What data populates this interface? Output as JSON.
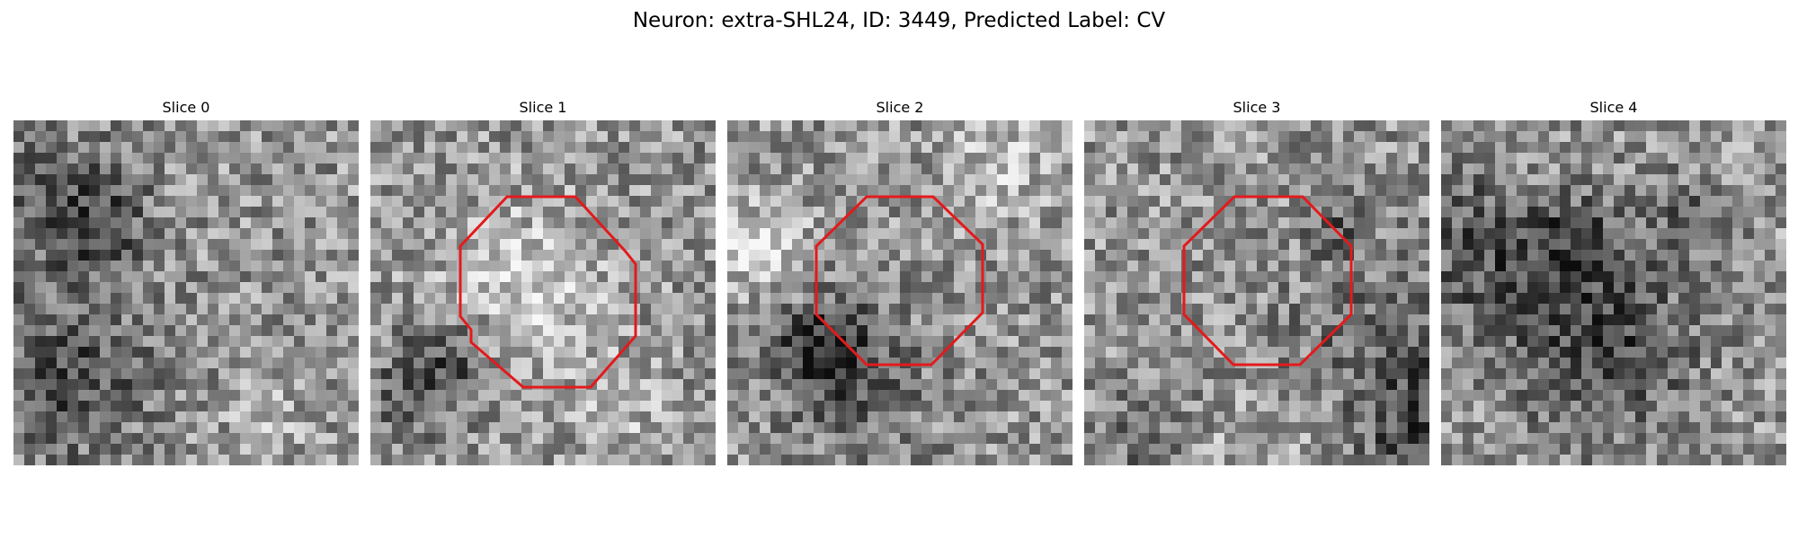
{
  "figure": {
    "title": "Neuron: extra-SHL24, ID: 3449, Predicted Label: CV",
    "contour_color": "#e31a1c"
  },
  "panels": [
    {
      "title": "Slice 0",
      "has_contour": false
    },
    {
      "title": "Slice 1",
      "has_contour": true
    },
    {
      "title": "Slice 2",
      "has_contour": true
    },
    {
      "title": "Slice 3",
      "has_contour": true
    },
    {
      "title": "Slice 4",
      "has_contour": false
    }
  ]
}
